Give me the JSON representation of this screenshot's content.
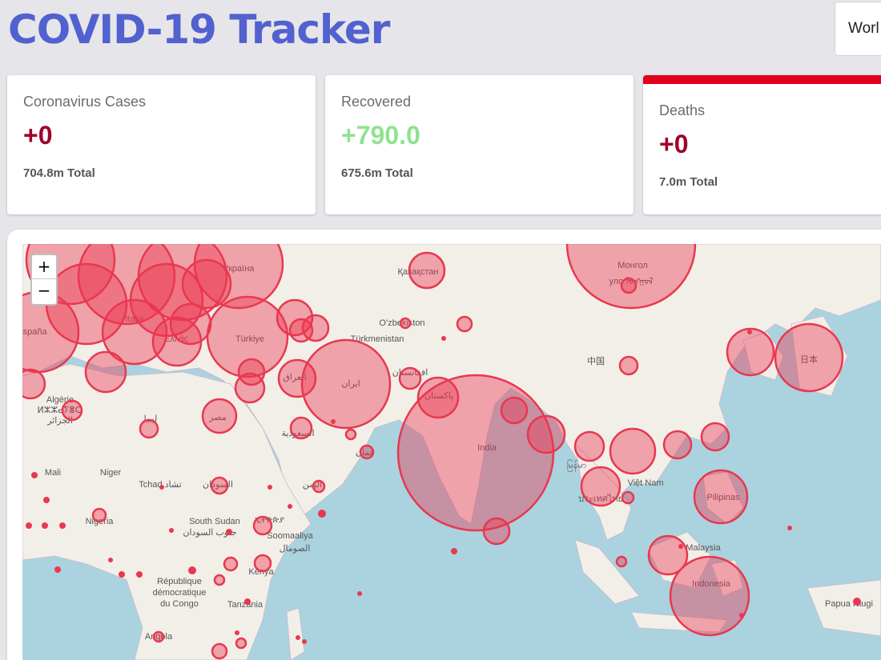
{
  "header": {
    "title": "COVID-19 Tracker",
    "country_select_value": "Worl"
  },
  "cards": {
    "cases": {
      "label": "Coronavirus Cases",
      "delta": "+0",
      "total": "704.8m Total",
      "color": "#a0002a"
    },
    "recovered": {
      "label": "Recovered",
      "delta": "+790.0",
      "total": "675.6m Total",
      "color": "#8ee38e"
    },
    "deaths": {
      "label": "Deaths",
      "delta": "+0",
      "total": "7.0m Total",
      "color": "#a0002a",
      "accent": "#e0001a"
    }
  },
  "map": {
    "zoom_in": "+",
    "zoom_out": "−",
    "circle_color": "#e8384f",
    "water_color": "#aad3df",
    "land_color": "#f2efe9",
    "labels": [
      {
        "text": "Україна"
      },
      {
        "text": "Қазақстан"
      },
      {
        "text": "Монгол"
      },
      {
        "text": "улс ᠮᠣᠩᠭᠣᠯ"
      },
      {
        "text": "Italia"
      },
      {
        "text": "España"
      },
      {
        "text": "Ελλάς"
      },
      {
        "text": "Türkiye"
      },
      {
        "text": "O'zbekiston"
      },
      {
        "text": "Türkmenistan"
      },
      {
        "text": "中国"
      },
      {
        "text": "日本"
      },
      {
        "text": "Algérie"
      },
      {
        "text": "ⵍⵣⵣⴰⵢⴻⵔ"
      },
      {
        "text": "الجزائر"
      },
      {
        "text": "ليبيا"
      },
      {
        "text": "مصر"
      },
      {
        "text": "العراق"
      },
      {
        "text": "ایران"
      },
      {
        "text": "افغانستان"
      },
      {
        "text": "پاکستان"
      },
      {
        "text": "السعودية"
      },
      {
        "text": "India"
      },
      {
        "text": "Mali"
      },
      {
        "text": "Niger"
      },
      {
        "text": "Tchad تشاد"
      },
      {
        "text": "السودان"
      },
      {
        "text": "Việt Nam"
      },
      {
        "text": "Pilipinas"
      },
      {
        "text": "Nigeria"
      },
      {
        "text": "South Sudan"
      },
      {
        "text": "جنوب السودان"
      },
      {
        "text": "Soomaaliya"
      },
      {
        "text": "الصومال"
      },
      {
        "text": "Malaysia"
      },
      {
        "text": "République"
      },
      {
        "text": "démocratique"
      },
      {
        "text": "du Congo"
      },
      {
        "text": "Kenya"
      },
      {
        "text": "Tanzania"
      },
      {
        "text": "Indonesia"
      },
      {
        "text": "Papua Niugi"
      },
      {
        "text": "Angola"
      },
      {
        "text": "ประเทศไทย"
      },
      {
        "text": "မြန်မာ"
      },
      {
        "text": "ኢትዮጵያ"
      },
      {
        "text": "عمان"
      },
      {
        "text": "اليمن"
      }
    ]
  }
}
